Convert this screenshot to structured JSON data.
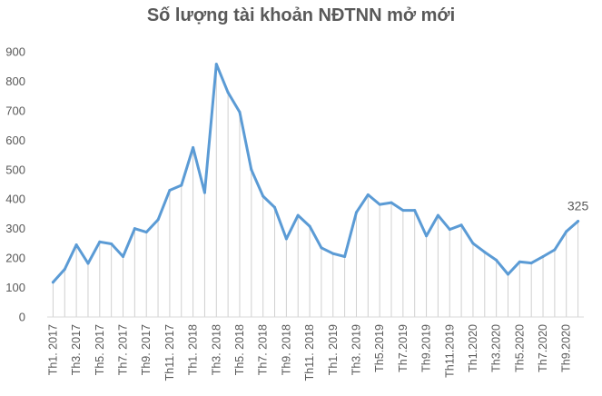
{
  "chart_data": {
    "type": "area",
    "title": "Số lượng tài khoản NĐTNN mở mới",
    "xlabel": "",
    "ylabel": "",
    "ylim": [
      0,
      900
    ],
    "yticks": [
      0,
      100,
      200,
      300,
      400,
      500,
      600,
      700,
      800,
      900
    ],
    "grid": false,
    "x": [
      "Th1. 2017",
      "Th2. 2017",
      "Th3. 2017",
      "Th4. 2017",
      "Th5. 2017",
      "Th6. 2017",
      "Th7. 2017",
      "Th8. 2017",
      "Th9. 2017",
      "Th10. 2017",
      "Th11. 2017",
      "Th12. 2017",
      "Th1. 2018",
      "Th2. 2018",
      "Th3. 2018",
      "Th4. 2018",
      "Th5. 2018",
      "Th6. 2018",
      "Th7. 2018",
      "Th8. 2018",
      "Th9. 2018",
      "Th10. 2018",
      "Th11. 2018",
      "Th12. 2018",
      "Th1. 2019",
      "Th2. 2019",
      "Th3. 2019",
      "Th4. 2019",
      "Th5.2019",
      "Th6.2019",
      "Th7.2019",
      "Th8.2019",
      "Th9.2019",
      "Th10.2019",
      "Th11.2019",
      "Th12.2019",
      "Th1.2020",
      "Th2.2020",
      "Th3.2020",
      "Th4.2020",
      "Th5.2020",
      "Th6.2020",
      "Th7.2020",
      "Th8.2020",
      "Th9.2020",
      "Th10.2020"
    ],
    "xtick_labels": [
      "Th1. 2017",
      "Th3. 2017",
      "Th5. 2017",
      "Th7. 2017",
      "Th9. 2017",
      "Th11. 2017",
      "Th1. 2018",
      "Th3. 2018",
      "Th5. 2018",
      "Th7. 2018",
      "Th9. 2018",
      "Th11. 2018",
      "Th1. 2019",
      "Th3. 2019",
      "Th5.2019",
      "Th7.2019",
      "Th9.2019",
      "Th11.2019",
      "Th1.2020",
      "Th3.2020",
      "Th5.2020",
      "Th7.2020",
      "Th9.2020"
    ],
    "values": [
      118,
      162,
      245,
      182,
      255,
      248,
      205,
      300,
      288,
      330,
      430,
      447,
      575,
      422,
      858,
      762,
      695,
      500,
      410,
      372,
      265,
      345,
      308,
      235,
      215,
      205,
      355,
      415,
      382,
      388,
      362,
      362,
      275,
      345,
      297,
      312,
      250,
      220,
      193,
      145,
      187,
      183,
      205,
      228,
      290,
      325
    ],
    "data_labels": [
      {
        "index": 45,
        "text": "325"
      }
    ],
    "colors": {
      "line": "#5B9BD5",
      "drop_lines": "#d0d0d0",
      "axis": "#d9d9d9",
      "text": "#595959"
    }
  }
}
